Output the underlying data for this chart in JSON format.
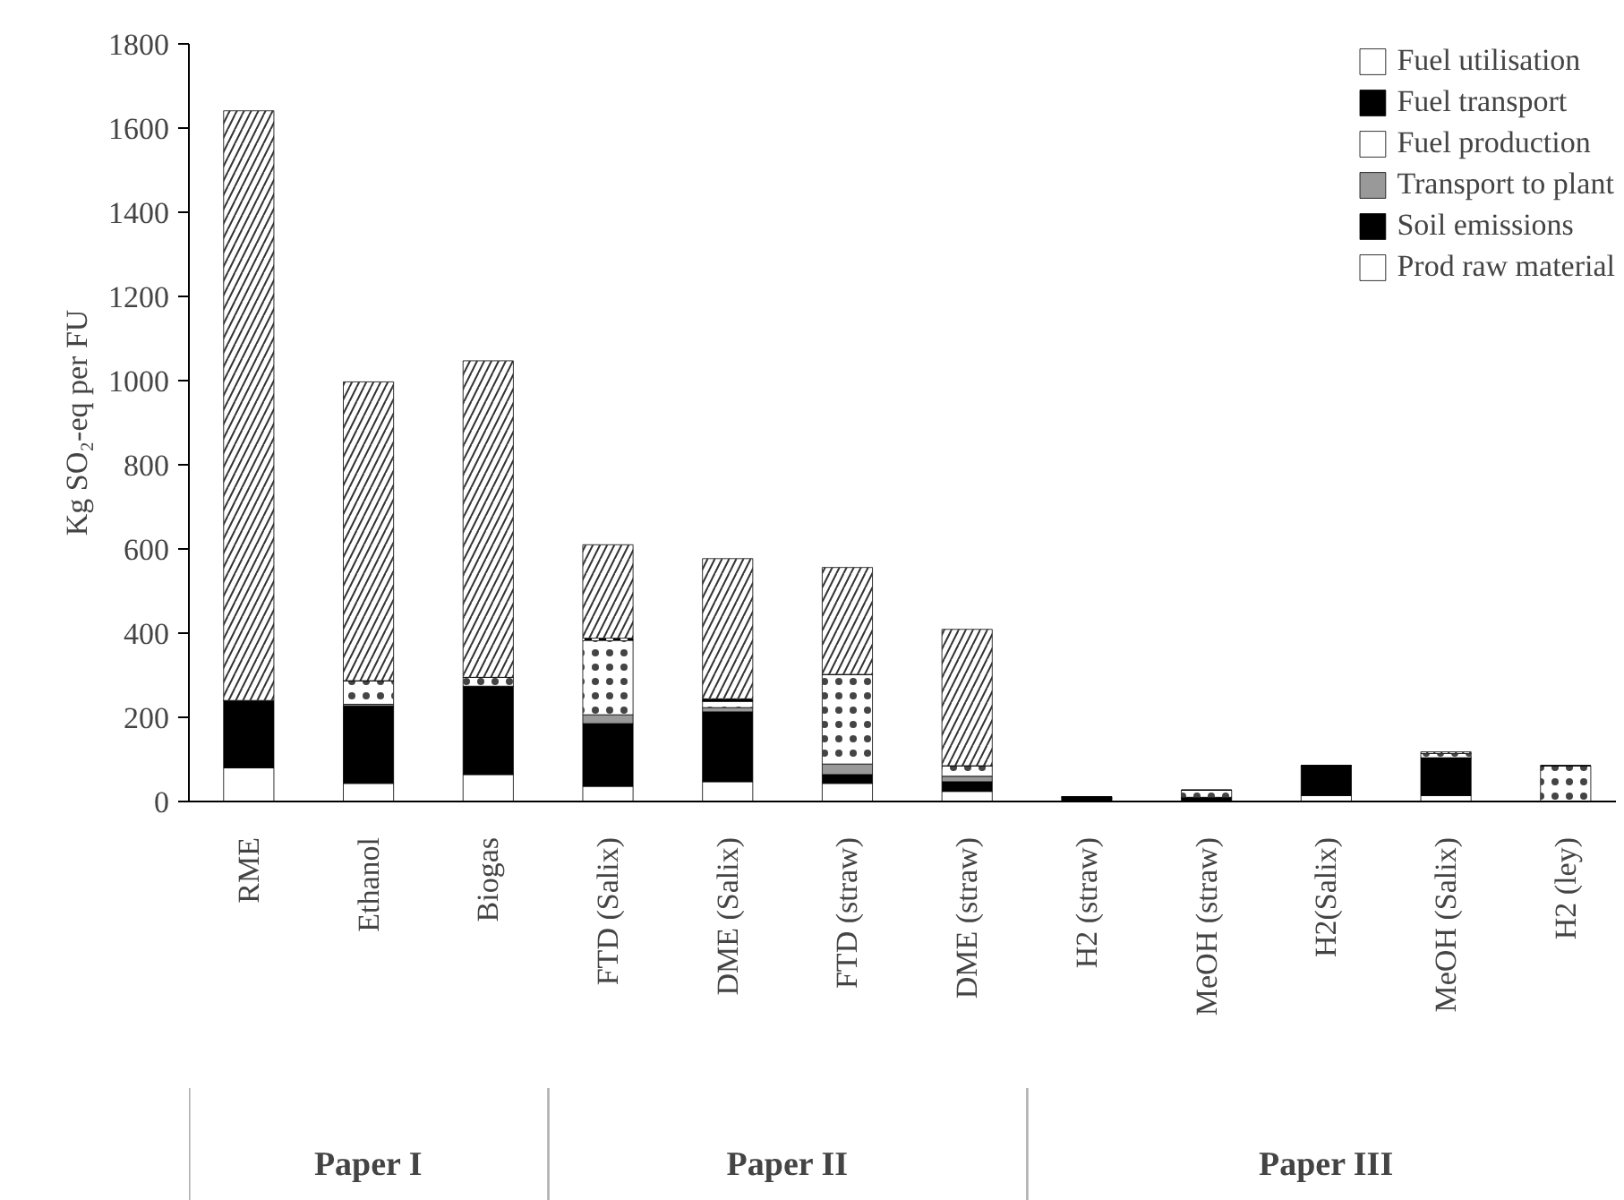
{
  "chart_data": {
    "type": "bar",
    "stacked": true,
    "ylabel": "Kg SO₂-eq per FU",
    "categories": [
      "RME",
      "Ethanol",
      "Biogas",
      "FTD (Salix)",
      "DME (Salix)",
      "FTD (straw)",
      "DME (straw)",
      "H2 (straw)",
      "MeOH (straw)",
      "H2(Salix)",
      "MeOH (Salix)",
      "H2 (ley)"
    ],
    "series": [
      {
        "name": "Prod raw material",
        "color": "#ffffff",
        "values": [
          80,
          43,
          64,
          36,
          47,
          43,
          24,
          0,
          0,
          14,
          14,
          0
        ]
      },
      {
        "name": "Soil emissions",
        "color": "#000000",
        "values": [
          160,
          184,
          210,
          149,
          166,
          21,
          23,
          11,
          10,
          71,
          90,
          0
        ]
      },
      {
        "name": "Transport to plant",
        "color": "#999999",
        "values": [
          0,
          4,
          0,
          21,
          10,
          25,
          13,
          0,
          0,
          0,
          0,
          0
        ]
      },
      {
        "name": "Fuel production",
        "color": "#ffffff",
        "values": [
          0,
          56,
          21,
          177,
          15,
          213,
          25,
          0,
          17,
          0,
          10,
          85
        ]
      },
      {
        "name": "Fuel transport",
        "color": "#000000",
        "values": [
          0,
          0,
          0,
          5,
          6,
          0,
          0,
          0,
          0,
          0,
          0,
          0
        ]
      },
      {
        "name": "Fuel utilisation",
        "color": "#ffffff",
        "values": [
          1401,
          710,
          752,
          222,
          333,
          254,
          324,
          0,
          0,
          0,
          4,
          0
        ]
      }
    ],
    "ylim": [
      0,
      1800
    ],
    "yticks": [
      0,
      200,
      400,
      600,
      800,
      1000,
      1200,
      1400,
      1600,
      1800
    ],
    "grid": false,
    "legend": "top right",
    "annotations": [
      "Paper I",
      "Paper II",
      "Paper III"
    ]
  }
}
